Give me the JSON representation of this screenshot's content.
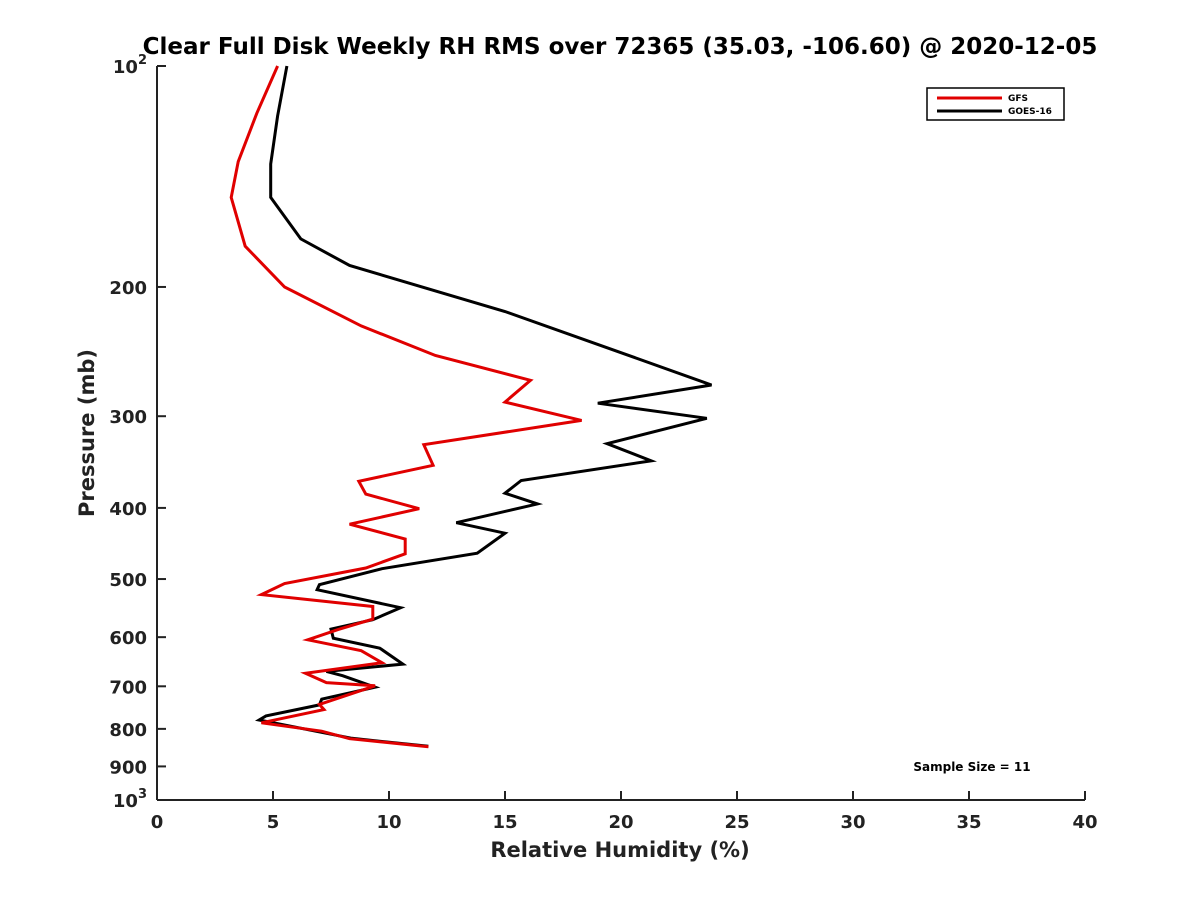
{
  "chart_data": {
    "type": "line",
    "title": "Clear Full Disk Weekly RH RMS over 72365 (35.03, -106.60) @ 2020-12-05",
    "xlabel": "Relative Humidity (%)",
    "ylabel": "Pressure (mb)",
    "xlim": [
      0,
      40
    ],
    "ylim": [
      100,
      1000
    ],
    "y_scale": "log",
    "y_inverted": true,
    "x_ticks": [
      0,
      5,
      10,
      15,
      20,
      25,
      30,
      35,
      40
    ],
    "x_tick_labels": [
      "0",
      "5",
      "10",
      "15",
      "20",
      "25",
      "30",
      "35",
      "40"
    ],
    "y_ticks": [
      100,
      200,
      300,
      400,
      500,
      600,
      700,
      800,
      900,
      1000
    ],
    "y_tick_labels": [
      {
        "base": "10",
        "exp": "2"
      },
      {
        "base": "200",
        "exp": ""
      },
      {
        "base": "300",
        "exp": ""
      },
      {
        "base": "400",
        "exp": ""
      },
      {
        "base": "500",
        "exp": ""
      },
      {
        "base": "600",
        "exp": ""
      },
      {
        "base": "700",
        "exp": ""
      },
      {
        "base": "800",
        "exp": ""
      },
      {
        "base": "900",
        "exp": ""
      },
      {
        "base": "10",
        "exp": "3"
      }
    ],
    "grid": false,
    "legend_position": "top-right",
    "annotation": "Sample Size = 11",
    "series": [
      {
        "name": "GFS",
        "color": "#e00000",
        "points": [
          [
            5.2,
            100
          ],
          [
            4.3,
            116
          ],
          [
            3.5,
            135
          ],
          [
            3.2,
            151
          ],
          [
            3.8,
            176
          ],
          [
            5.5,
            200
          ],
          [
            8.8,
            226
          ],
          [
            12,
            248
          ],
          [
            16.1,
            268
          ],
          [
            15,
            287
          ],
          [
            18.3,
            304
          ],
          [
            11.5,
            328
          ],
          [
            11.9,
            350
          ],
          [
            8.7,
            368
          ],
          [
            9,
            383
          ],
          [
            11.3,
            401
          ],
          [
            8.3,
            421
          ],
          [
            10.7,
            441
          ],
          [
            10.7,
            462
          ],
          [
            9,
            483
          ],
          [
            5.5,
            507
          ],
          [
            4.5,
            525
          ],
          [
            9.3,
            545
          ],
          [
            9.3,
            567
          ],
          [
            7.8,
            586
          ],
          [
            6.5,
            605
          ],
          [
            8.8,
            626
          ],
          [
            9.7,
            650
          ],
          [
            6.4,
            672
          ],
          [
            7.3,
            692
          ],
          [
            9.4,
            699
          ],
          [
            7,
            741
          ],
          [
            7.2,
            753
          ],
          [
            4.5,
            785
          ],
          [
            7.1,
            806
          ],
          [
            8.3,
            825
          ],
          [
            11.7,
            846
          ]
        ]
      },
      {
        "name": "GOES-16",
        "color": "#000000",
        "points": [
          [
            5.6,
            100
          ],
          [
            5.2,
            117
          ],
          [
            4.9,
            136
          ],
          [
            4.9,
            151
          ],
          [
            6.2,
            172
          ],
          [
            8.3,
            187
          ],
          [
            15,
            216
          ],
          [
            20.5,
            249
          ],
          [
            23.9,
            272
          ],
          [
            19,
            288
          ],
          [
            23.7,
            302
          ],
          [
            19.4,
            327
          ],
          [
            21.3,
            345
          ],
          [
            15.7,
            367
          ],
          [
            15,
            382
          ],
          [
            16.4,
            395
          ],
          [
            12.9,
            419
          ],
          [
            15,
            433
          ],
          [
            13.8,
            461
          ],
          [
            9.7,
            484
          ],
          [
            7,
            509
          ],
          [
            6.9,
            517
          ],
          [
            10.5,
            547
          ],
          [
            9.3,
            568
          ],
          [
            7.5,
            585
          ],
          [
            7.6,
            602
          ],
          [
            9.6,
            621
          ],
          [
            10.6,
            653
          ],
          [
            7.3,
            668
          ],
          [
            8,
            677
          ],
          [
            9.4,
            702
          ],
          [
            7.1,
            729
          ],
          [
            7,
            742
          ],
          [
            4.7,
            768
          ],
          [
            4.4,
            778
          ],
          [
            8.4,
            824
          ],
          [
            11.7,
            845
          ]
        ]
      }
    ]
  }
}
